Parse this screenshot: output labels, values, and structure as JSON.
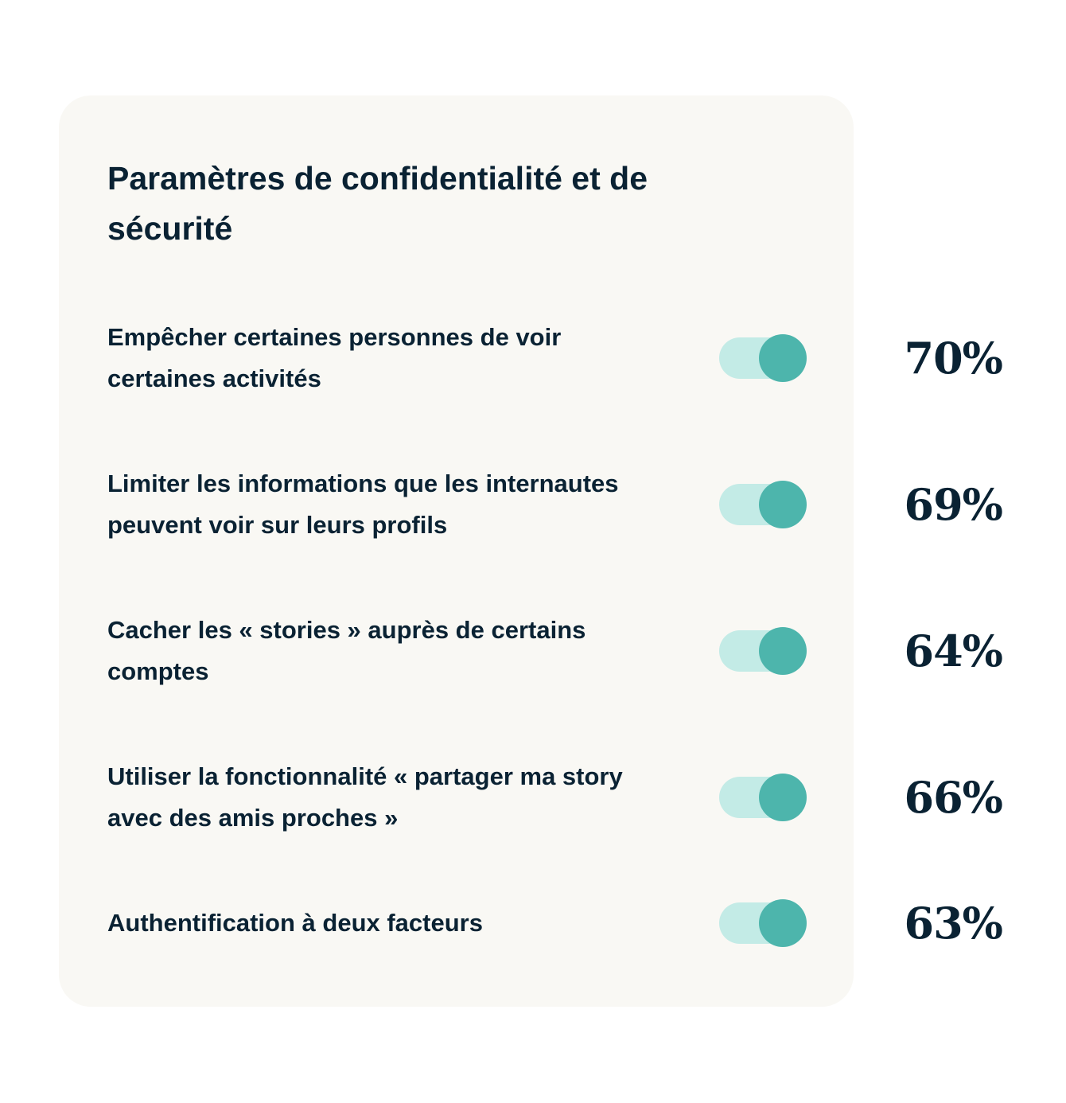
{
  "title": "Paramètres de confidentialité et de sécurité",
  "colors": {
    "card_bg": "#f9f8f4",
    "text": "#0a2233",
    "toggle_track": "#c3ebe6",
    "toggle_knob": "#4db5ac"
  },
  "items": [
    {
      "label": "Empêcher certaines personnes de voir certaines activités",
      "percent": "70%",
      "toggle_on": true
    },
    {
      "label": "Limiter les informations que les internautes peuvent voir sur leurs profils",
      "percent": "69%",
      "toggle_on": true
    },
    {
      "label": "Cacher les « stories » auprès de certains comptes",
      "percent": "64%",
      "toggle_on": true
    },
    {
      "label": "Utiliser la fonctionnalité « partager ma story avec des amis proches »",
      "percent": "66%",
      "toggle_on": true
    },
    {
      "label": "Authentification à deux facteurs",
      "percent": "63%",
      "toggle_on": true
    }
  ]
}
